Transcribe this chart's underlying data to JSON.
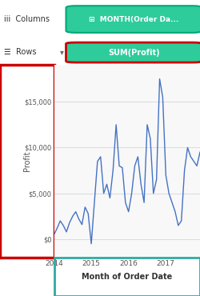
{
  "title_bar": "MONTH(Order Da...",
  "rows_label": "SUM(Profit)",
  "xlabel": "Month of Order Date",
  "ylabel": "Profit",
  "line_color": "#4472C4",
  "bg_color": "#ffffff",
  "panel_bg": "#f9f9f9",
  "grid_color": "#d0d0d0",
  "columns_text": "Columns",
  "rows_text": "Rows",
  "col_pill_color": "#2ecc9b",
  "row_pill_color": "#2ecc9b",
  "col_pill_border": "#00a878",
  "row_pill_border": "#cc0000",
  "x_ticks": [
    "2014",
    "2015",
    "2016",
    "2017"
  ],
  "ytick_labels": [
    "$0",
    "$5,000",
    "$10,000",
    "$15,000"
  ],
  "ytick_values": [
    0,
    5000,
    10000,
    15000
  ],
  "ylim": [
    -2000,
    19000
  ],
  "xlim_start": 0,
  "xlim_end": 47,
  "profit_data": [
    500,
    1200,
    2000,
    1500,
    800,
    1800,
    2500,
    3000,
    2200,
    1600,
    3500,
    2800,
    -500,
    4000,
    8500,
    9000,
    5000,
    6000,
    4500,
    7500,
    12500,
    8000,
    7800,
    4000,
    3000,
    5000,
    8000,
    9000,
    6000,
    4000,
    12500,
    11000,
    5000,
    6500,
    17500,
    15500,
    7000,
    5000,
    4000,
    3000,
    1500,
    2000,
    7500,
    10000,
    9000,
    8500,
    8000,
    9500
  ]
}
